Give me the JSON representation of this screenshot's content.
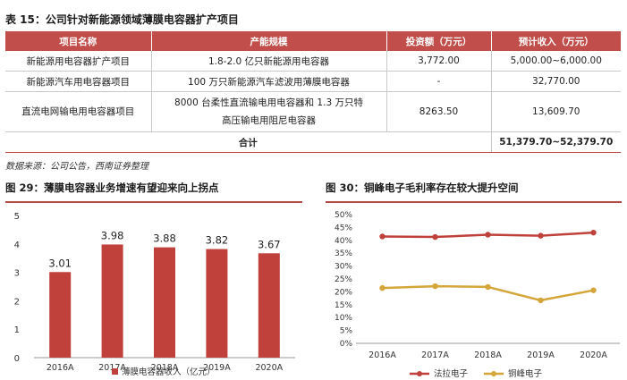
{
  "table": {
    "title": "表 15：公司针对新能源领域薄膜电容器扩产项目",
    "headers": [
      "项目名称",
      "产能规模",
      "投资额（万元）",
      "预计收入（万元）"
    ],
    "rows": [
      [
        "新能源用电容器扩产项目",
        "1.8-2.0 亿只新能源用电容器",
        "3,772.00",
        "5,000.00~6,000.00"
      ],
      [
        "新能源汽车用电容器项目",
        "100 万只新能源汽车滤波用薄膜电容器",
        "-",
        "32,770.00"
      ],
      [
        "直流电网输电用电容器项目",
        "8000 台柔性直流输电用电容器和 1.3 万只特高压输电用阻尼电容器",
        "8263.50",
        "13,609.70"
      ]
    ],
    "total": {
      "label": "合计",
      "value": "51,379.70~52,379.70"
    }
  },
  "source": "数据来源：公司公告，西南证券整理",
  "fig29": {
    "title": "图 29：薄膜电容器业务增速有望迎来向上拐点",
    "color": "#c0413b"
  },
  "fig30": {
    "title": "图 30：铜峰电子毛利率存在较大提升空间"
  },
  "chart_data": [
    {
      "type": "bar",
      "categories": [
        "2016A",
        "2017A",
        "2018A",
        "2019A",
        "2020A"
      ],
      "series": [
        {
          "name": "薄膜电容器收入（亿元）",
          "values": [
            3.01,
            3.98,
            3.88,
            3.82,
            3.67
          ]
        }
      ],
      "data_labels": [
        "3.01",
        "3.98",
        "3.88",
        "3.82",
        "3.67"
      ],
      "ylim": [
        0,
        5
      ],
      "yticks": [
        "0",
        "1",
        "2",
        "3",
        "4",
        "5"
      ],
      "legend": "bottom",
      "grid": false
    },
    {
      "type": "line",
      "categories": [
        "2016A",
        "2017A",
        "2018A",
        "2019A",
        "2020A"
      ],
      "series": [
        {
          "name": "法拉电子",
          "values": [
            41.5,
            41.3,
            42.2,
            41.8,
            43.0
          ],
          "color": "#c0413b"
        },
        {
          "name": "铜峰电子",
          "values": [
            21.5,
            22.2,
            21.9,
            16.7,
            20.6
          ],
          "color": "#d4a63a"
        }
      ],
      "ylim": [
        0,
        50
      ],
      "yticks": [
        "0%",
        "5%",
        "10%",
        "15%",
        "20%",
        "25%",
        "30%",
        "35%",
        "40%",
        "45%",
        "50%"
      ],
      "legend": "bottom",
      "grid": false
    }
  ]
}
